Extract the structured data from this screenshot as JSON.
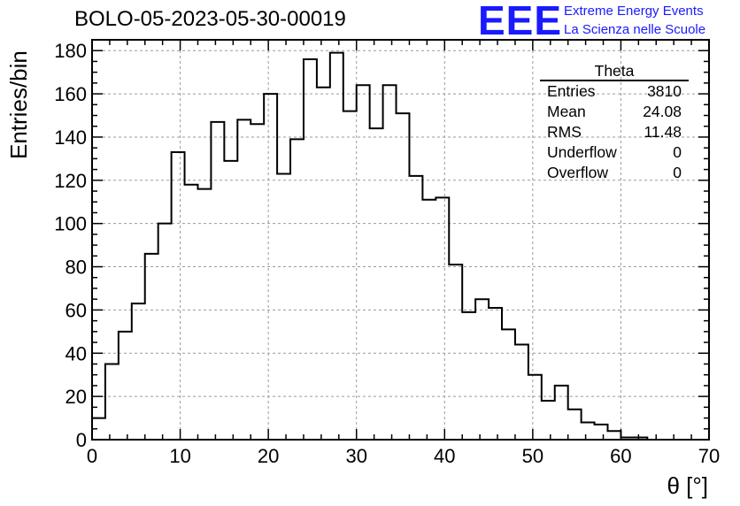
{
  "header": {
    "title": "BOLO-05-2023-05-30-00019"
  },
  "logo": {
    "text": "EEE",
    "line1": "Extreme Energy Events",
    "line2": "La Scienza nelle Scuole",
    "color": "#1a1aff"
  },
  "stats": {
    "name": "Theta",
    "rows": [
      {
        "label": "Entries",
        "value": "3810"
      },
      {
        "label": "Mean",
        "value": "24.08"
      },
      {
        "label": "RMS",
        "value": "11.48"
      },
      {
        "label": "Underflow",
        "value": "0"
      },
      {
        "label": "Overflow",
        "value": "0"
      }
    ]
  },
  "chart_data": {
    "type": "histogram",
    "title": "BOLO-05-2023-05-30-00019",
    "xlabel": "θ [°]",
    "ylabel": "Entries/bin",
    "xlim": [
      0,
      70
    ],
    "ylim": [
      0,
      185
    ],
    "xticks": [
      0,
      10,
      20,
      30,
      40,
      50,
      60,
      70
    ],
    "yticks": [
      0,
      20,
      40,
      60,
      80,
      100,
      120,
      140,
      160,
      180
    ],
    "bin_width": 1.5,
    "bin_start": 0,
    "values": [
      10,
      35,
      50,
      63,
      86,
      100,
      133,
      118,
      116,
      147,
      129,
      148,
      146,
      160,
      123,
      139,
      176,
      163,
      179,
      152,
      164,
      144,
      164,
      151,
      122,
      111,
      112,
      81,
      59,
      65,
      61,
      51,
      44,
      30,
      18,
      25,
      14,
      8,
      7,
      4,
      1,
      1,
      0,
      0,
      0,
      0,
      0
    ],
    "grid": true,
    "line_color": "#000000"
  }
}
